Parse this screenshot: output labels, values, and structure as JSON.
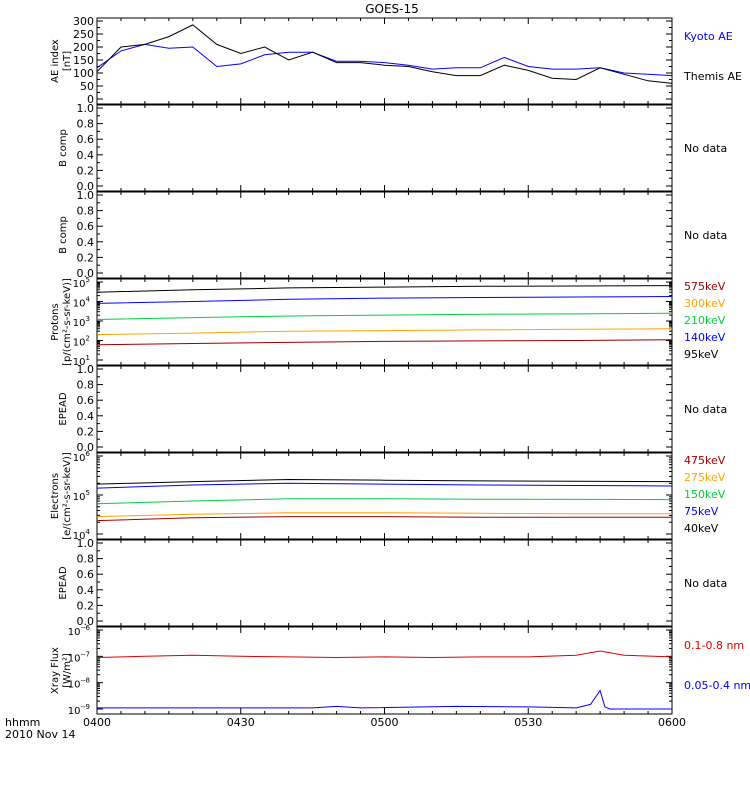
{
  "title": "GOES-15",
  "footer": {
    "time_label": "hhmm",
    "date_label": "2010 Nov 14"
  },
  "x_axis": {
    "ticks": [
      "0400",
      "0430",
      "0500",
      "0530",
      "0600"
    ]
  },
  "colors": {
    "black": "#000000",
    "blue": "#0000ff",
    "red": "#a00000",
    "orange": "#ffa500",
    "green": "#00d040",
    "xray_red": "#dd0000"
  },
  "chart_data": [
    {
      "type": "line",
      "panel": "ae_index",
      "ylabel_lines": [
        "AE index",
        "[nT]"
      ],
      "ylim": [
        0,
        300
      ],
      "yticks": [
        "0",
        "50",
        "100",
        "150",
        "200",
        "250",
        "300"
      ],
      "series": [
        {
          "name": "Kyoto AE",
          "color": "#0000ff",
          "x_minutes": [
            0,
            5,
            10,
            15,
            20,
            25,
            30,
            35,
            40,
            45,
            50,
            55,
            60,
            65,
            70,
            75,
            80,
            85,
            90,
            95,
            100,
            105,
            110,
            115,
            120
          ],
          "values": [
            120,
            185,
            210,
            195,
            200,
            125,
            135,
            170,
            180,
            180,
            145,
            145,
            140,
            130,
            115,
            120,
            120,
            160,
            125,
            115,
            115,
            120,
            100,
            95,
            90
          ]
        },
        {
          "name": "Themis AE",
          "color": "#000000",
          "x_minutes": [
            0,
            5,
            10,
            15,
            20,
            25,
            30,
            35,
            40,
            45,
            50,
            55,
            60,
            65,
            70,
            75,
            80,
            85,
            90,
            95,
            100,
            105,
            110,
            115,
            120
          ],
          "values": [
            105,
            200,
            210,
            240,
            285,
            210,
            175,
            200,
            150,
            180,
            140,
            140,
            130,
            125,
            105,
            90,
            90,
            130,
            110,
            80,
            75,
            120,
            95,
            70,
            60
          ]
        }
      ]
    },
    {
      "type": "line",
      "panel": "b_comp_1",
      "ylabel_lines": [
        "B comp"
      ],
      "ylim": [
        0,
        1
      ],
      "yticks": [
        "0.0",
        "0.2",
        "0.4",
        "0.6",
        "0.8",
        "1.0"
      ],
      "status": "No data",
      "series": []
    },
    {
      "type": "line",
      "panel": "b_comp_2",
      "ylabel_lines": [
        "B comp"
      ],
      "ylim": [
        0,
        1
      ],
      "yticks": [
        "0.0",
        "0.2",
        "0.4",
        "0.6",
        "0.8",
        "1.0"
      ],
      "status": "No data",
      "series": []
    },
    {
      "type": "line",
      "panel": "protons",
      "ylabel_lines": [
        "Protons",
        "[p/(cm²-s-sr-keV)]"
      ],
      "ylog": true,
      "ylim_exp": [
        1,
        5
      ],
      "yticks_exp": [
        1,
        2,
        3,
        4,
        5
      ],
      "series": [
        {
          "name": "575keV",
          "color": "#a00000",
          "values": [
            60,
            70,
            80,
            90,
            95,
            100,
            110
          ]
        },
        {
          "name": "300keV",
          "color": "#ffa500",
          "values": [
            200,
            240,
            300,
            320,
            350,
            380,
            400
          ]
        },
        {
          "name": "210keV",
          "color": "#00d040",
          "values": [
            1200,
            1500,
            1800,
            2000,
            2200,
            2300,
            2500
          ]
        },
        {
          "name": "140keV",
          "color": "#0000ff",
          "values": [
            8000,
            10000,
            13000,
            15000,
            16000,
            17000,
            18000
          ]
        },
        {
          "name": "95keV",
          "color": "#000000",
          "values": [
            30000,
            40000,
            50000,
            55000,
            60000,
            62000,
            65000
          ]
        }
      ]
    },
    {
      "type": "line",
      "panel": "epead_1",
      "ylabel_lines": [
        "EPEAD"
      ],
      "ylim": [
        0,
        1
      ],
      "yticks": [
        "0.0",
        "0.2",
        "0.4",
        "0.6",
        "0.8",
        "1.0"
      ],
      "status": "No data",
      "series": []
    },
    {
      "type": "line",
      "panel": "electrons",
      "ylabel_lines": [
        "Electrons",
        "[e/(cm²-s-sr-keV)]"
      ],
      "ylog": true,
      "ylim_exp": [
        4,
        6
      ],
      "yticks_exp": [
        4,
        5,
        6
      ],
      "series": [
        {
          "name": "475keV",
          "color": "#a00000",
          "values": [
            22000,
            26000,
            28000,
            28000,
            27000,
            27000,
            27000
          ]
        },
        {
          "name": "275keV",
          "color": "#ffa500",
          "values": [
            28000,
            32000,
            35000,
            35000,
            34000,
            33000,
            33000
          ]
        },
        {
          "name": "150keV",
          "color": "#00d040",
          "values": [
            60000,
            70000,
            80000,
            80000,
            78000,
            77000,
            76000
          ]
        },
        {
          "name": "75keV",
          "color": "#0000ff",
          "values": [
            150000,
            180000,
            200000,
            190000,
            180000,
            175000,
            170000
          ]
        },
        {
          "name": "40keV",
          "color": "#000000",
          "values": [
            190000,
            220000,
            250000,
            240000,
            230000,
            225000,
            220000
          ]
        }
      ]
    },
    {
      "type": "line",
      "panel": "epead_2",
      "ylabel_lines": [
        "EPEAD"
      ],
      "ylim": [
        0,
        1
      ],
      "yticks": [
        "0.0",
        "0.2",
        "0.4",
        "0.6",
        "0.8",
        "1.0"
      ],
      "status": "No data",
      "series": []
    },
    {
      "type": "line",
      "panel": "xray",
      "ylabel_lines": [
        "Xray Flux",
        "[W/m²]"
      ],
      "ylog": true,
      "ylim_exp": [
        -9,
        -6
      ],
      "yticks_exp": [
        -9,
        -8,
        -7,
        -6
      ],
      "tick_sign": "-",
      "series": [
        {
          "name": "0.1-0.8 nm",
          "color": "#dd0000",
          "x_minutes": [
            0,
            10,
            20,
            30,
            40,
            50,
            60,
            70,
            80,
            90,
            100,
            105,
            110,
            120
          ],
          "values": [
            9e-08,
            1e-07,
            1.1e-07,
            1e-07,
            9.5e-08,
            9e-08,
            9.5e-08,
            9e-08,
            9.5e-08,
            9.5e-08,
            1.1e-07,
            1.6e-07,
            1.1e-07,
            9.5e-08
          ]
        },
        {
          "name": "0.05-0.4 nm",
          "color": "#0000ff",
          "x_minutes": [
            0,
            45,
            50,
            55,
            75,
            90,
            100,
            103,
            105,
            106,
            107,
            110,
            120
          ],
          "values": [
            1.1e-09,
            1.1e-09,
            1.25e-09,
            1.1e-09,
            1.25e-09,
            1.2e-09,
            1.1e-09,
            1.5e-09,
            5e-09,
            1.2e-09,
            1e-09,
            1e-09,
            1e-09
          ]
        }
      ]
    }
  ]
}
